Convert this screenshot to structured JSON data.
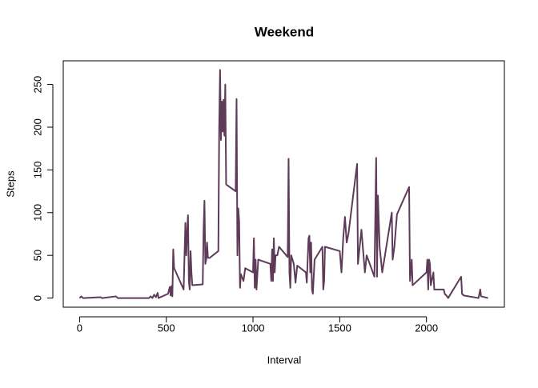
{
  "chart_data": {
    "type": "line",
    "title": "Weekend",
    "x_label": "Interval",
    "y_label": "Steps",
    "x": [
      0,
      10,
      20,
      120,
      130,
      210,
      220,
      400,
      410,
      420,
      430,
      440,
      450,
      455,
      510,
      520,
      525,
      530,
      535,
      540,
      545,
      600,
      605,
      610,
      615,
      620,
      625,
      630,
      635,
      640,
      645,
      650,
      710,
      715,
      720,
      725,
      730,
      735,
      740,
      750,
      800,
      805,
      810,
      815,
      820,
      825,
      830,
      835,
      840,
      845,
      900,
      905,
      910,
      915,
      920,
      925,
      930,
      945,
      955,
      1000,
      1005,
      1010,
      1015,
      1020,
      1030,
      1100,
      1105,
      1110,
      1115,
      1120,
      1125,
      1130,
      1140,
      1150,
      1200,
      1205,
      1210,
      1215,
      1220,
      1235,
      1245,
      1255,
      1305,
      1310,
      1320,
      1325,
      1330,
      1335,
      1340,
      1345,
      1355,
      1400,
      1405,
      1410,
      1415,
      1500,
      1510,
      1520,
      1530,
      1540,
      1550,
      1600,
      1605,
      1615,
      1625,
      1635,
      1645,
      1655,
      1700,
      1710,
      1715,
      1720,
      1730,
      1745,
      1800,
      1805,
      1815,
      1830,
      1900,
      1905,
      1915,
      1920,
      2000,
      2005,
      2010,
      2015,
      2020,
      2025,
      2030,
      2040,
      2045,
      2100,
      2105,
      2115,
      2125,
      2200,
      2205,
      2215,
      2300,
      2310,
      2315,
      2355
    ],
    "series": [
      {
        "name": "Steps",
        "color": "#5e3b58",
        "values": [
          0,
          2,
          0,
          1,
          0,
          2,
          0,
          0,
          2,
          0,
          4,
          1,
          6,
          0,
          5,
          13,
          3,
          14,
          2,
          57,
          35,
          10,
          50,
          88,
          50,
          76,
          97,
          20,
          10,
          55,
          30,
          15,
          16,
          80,
          114,
          40,
          45,
          65,
          47,
          47,
          55,
          200,
          267,
          185,
          230,
          195,
          232,
          190,
          250,
          133,
          125,
          233,
          50,
          105,
          90,
          12,
          28,
          20,
          35,
          30,
          70,
          12,
          45,
          10,
          45,
          40,
          20,
          57,
          20,
          70,
          30,
          50,
          50,
          60,
          48,
          163,
          30,
          12,
          50,
          40,
          18,
          38,
          30,
          18,
          70,
          73,
          30,
          65,
          10,
          5,
          45,
          60,
          10,
          20,
          60,
          55,
          30,
          70,
          95,
          65,
          75,
          157,
          40,
          60,
          80,
          55,
          30,
          50,
          25,
          164,
          25,
          120,
          60,
          30,
          100,
          45,
          60,
          98,
          130,
          20,
          45,
          15,
          30,
          45,
          10,
          45,
          40,
          15,
          20,
          30,
          10,
          10,
          5,
          3,
          0,
          25,
          5,
          3,
          0,
          10,
          2,
          0
        ]
      }
    ],
    "xlim": [
      -94.2,
      2449.2
    ],
    "ylim": [
      -10.7,
      277.7
    ],
    "xticks": [
      0,
      500,
      1000,
      1500,
      2000
    ],
    "yticks": [
      0,
      50,
      100,
      150,
      200,
      250
    ]
  }
}
